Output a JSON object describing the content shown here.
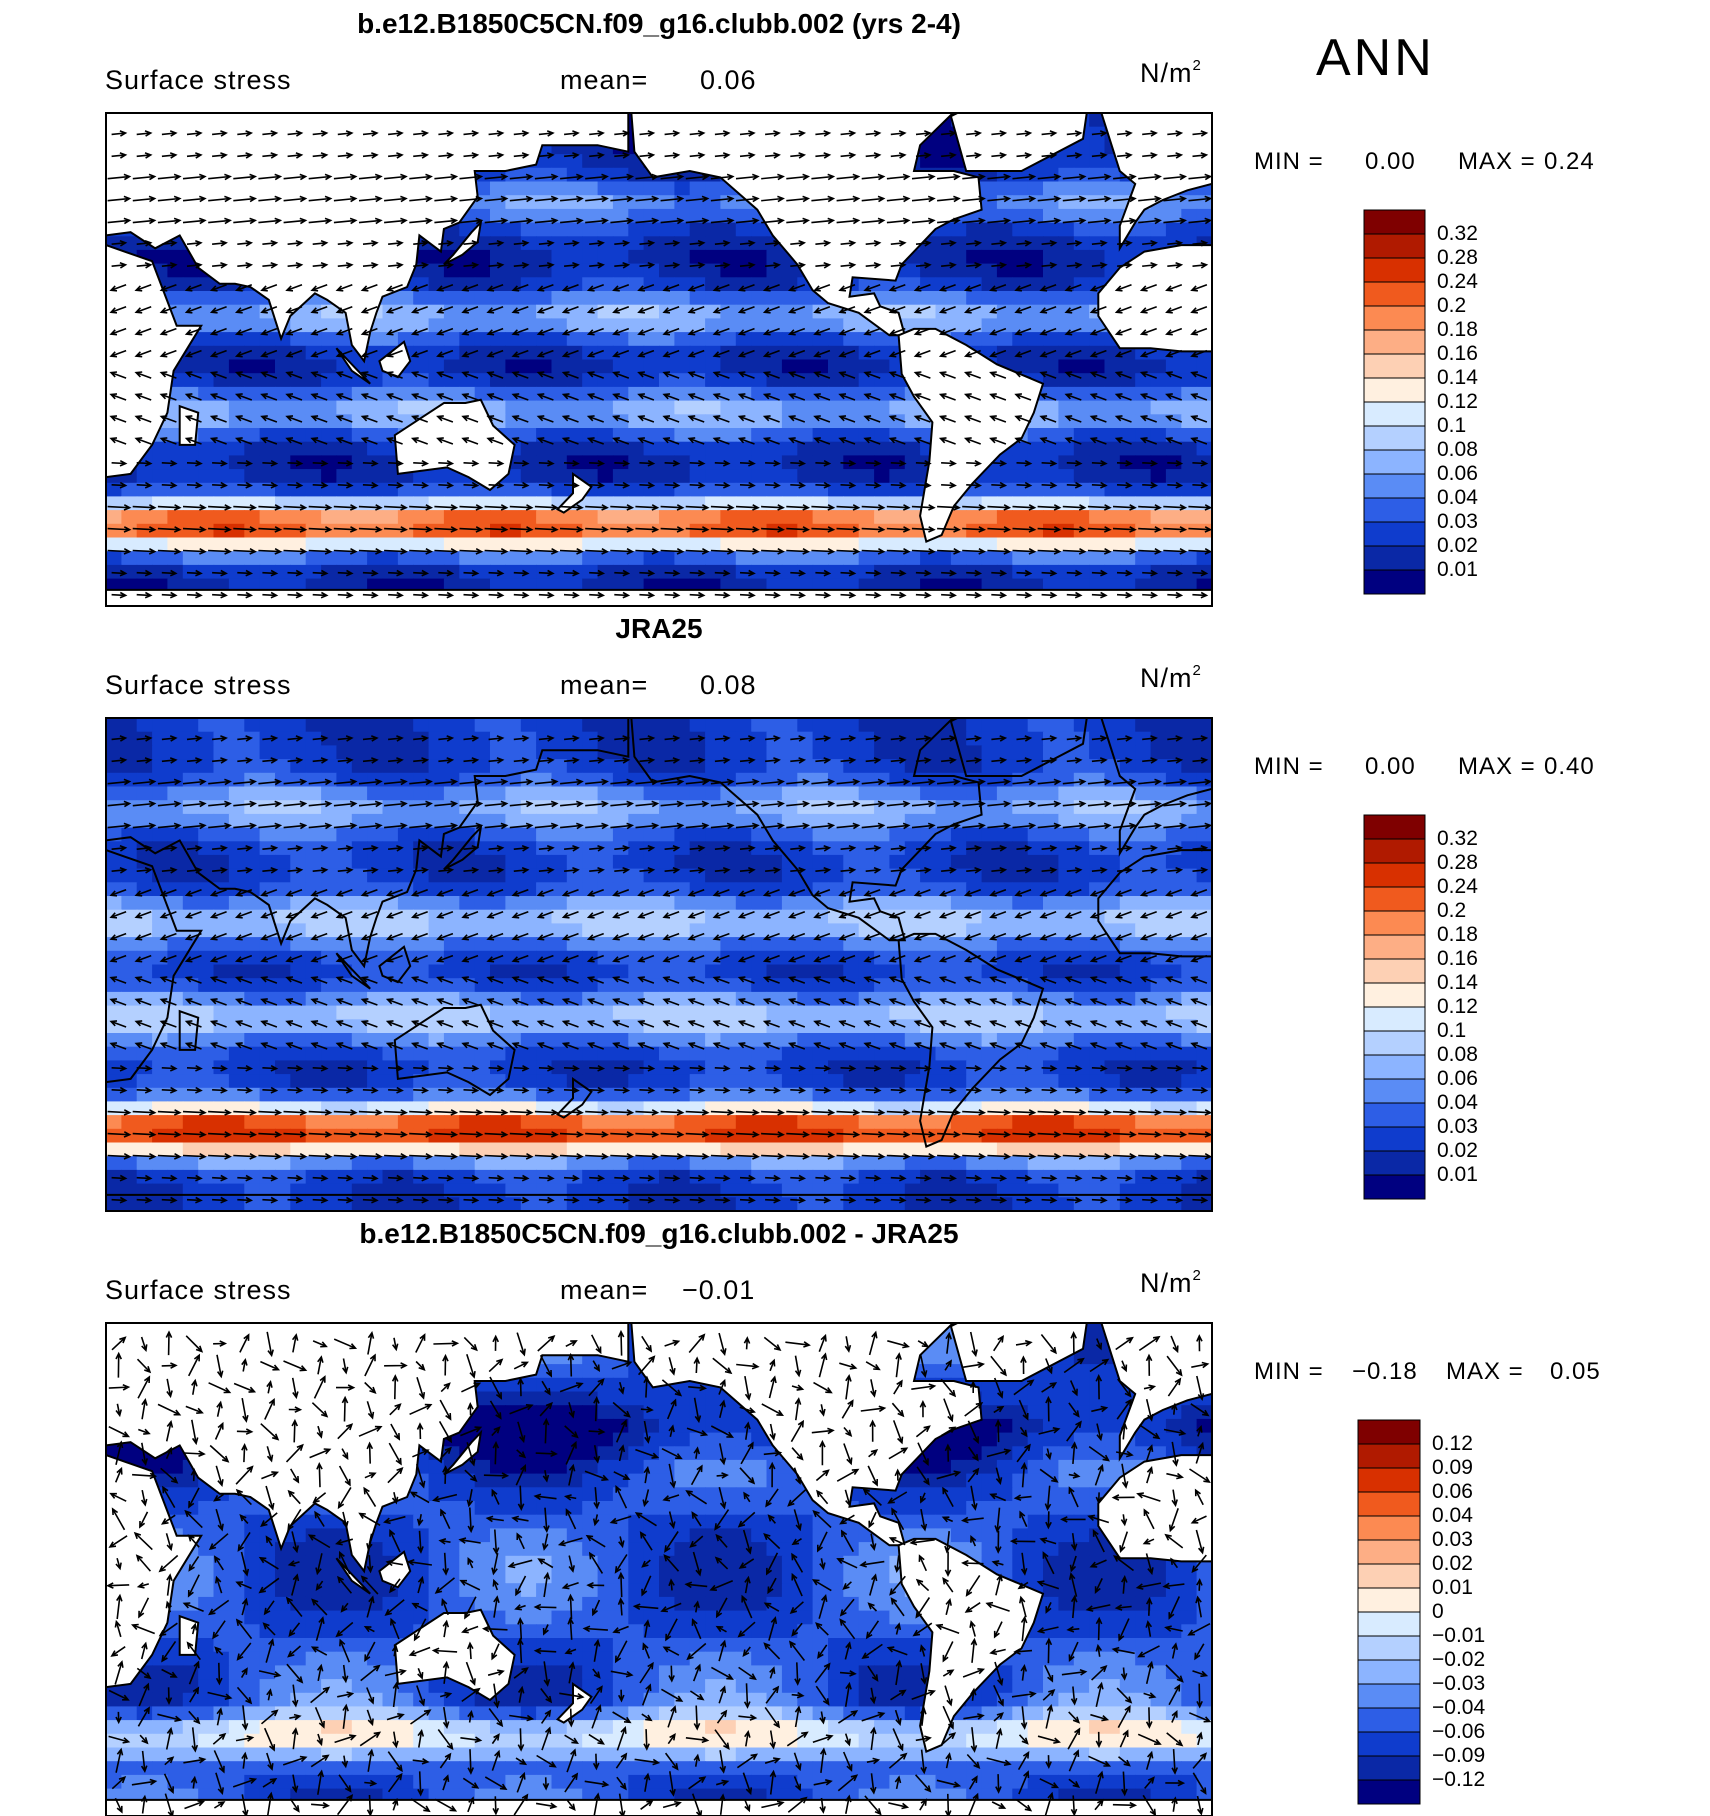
{
  "season": "ANN",
  "panels": [
    {
      "title": "b.e12.B1850C5CN.f09_g16.clubb.002 (yrs 2-4)",
      "left_label": "Surface stress",
      "mean_label": "mean=",
      "mean_value": "0.06",
      "units": "N/m",
      "units_exp": "2",
      "min_label": "MIN =",
      "min_value": "0.00",
      "max_label": "MAX =",
      "max_value": "0.24",
      "colorbar": [
        "0.32",
        "0.28",
        "0.24",
        "0.2",
        "0.18",
        "0.16",
        "0.14",
        "0.12",
        "0.1",
        "0.08",
        "0.06",
        "0.04",
        "0.03",
        "0.02",
        "0.01"
      ]
    },
    {
      "title": "JRA25",
      "left_label": "Surface stress",
      "mean_label": "mean=",
      "mean_value": "0.08",
      "units": "N/m",
      "units_exp": "2",
      "min_label": "MIN =",
      "min_value": "0.00",
      "max_label": "MAX =",
      "max_value": "0.40",
      "colorbar": [
        "0.32",
        "0.28",
        "0.24",
        "0.2",
        "0.18",
        "0.16",
        "0.14",
        "0.12",
        "0.1",
        "0.08",
        "0.06",
        "0.04",
        "0.03",
        "0.02",
        "0.01"
      ]
    },
    {
      "title": "b.e12.B1850C5CN.f09_g16.clubb.002 - JRA25",
      "left_label": "Surface stress",
      "mean_label": "mean=",
      "mean_value": "−0.01",
      "units": "N/m",
      "units_exp": "2",
      "min_label": "MIN =",
      "min_value": "−0.18",
      "max_label": "MAX =",
      "max_value": "0.05",
      "colorbar": [
        "0.12",
        "0.09",
        "0.06",
        "0.04",
        "0.03",
        "0.02",
        "0.01",
        "0",
        "−0.01",
        "−0.02",
        "−0.03",
        "−0.04",
        "−0.06",
        "−0.09",
        "−0.12"
      ]
    }
  ],
  "colors": {
    "seq": [
      "#7f0000",
      "#b01a00",
      "#d83000",
      "#f05a1e",
      "#fc8a52",
      "#fdae85",
      "#fdd0b4",
      "#fff0e0",
      "#d8ebff",
      "#b4d0ff",
      "#8cb4ff",
      "#5a8cf5",
      "#2d5ee6",
      "#0f3ccd",
      "#0a28a6",
      "#000080"
    ],
    "diff": [
      "#7f0000",
      "#b01a00",
      "#d83000",
      "#f05a1e",
      "#fc8a52",
      "#fdae85",
      "#fdd0b4",
      "#fff0e0",
      "#d8ebff",
      "#b4d0ff",
      "#8cb4ff",
      "#5a8cf5",
      "#2d5ee6",
      "#0f3ccd",
      "#0a28a6",
      "#000080"
    ],
    "land": "#ffffff",
    "coast": "#000000"
  }
}
